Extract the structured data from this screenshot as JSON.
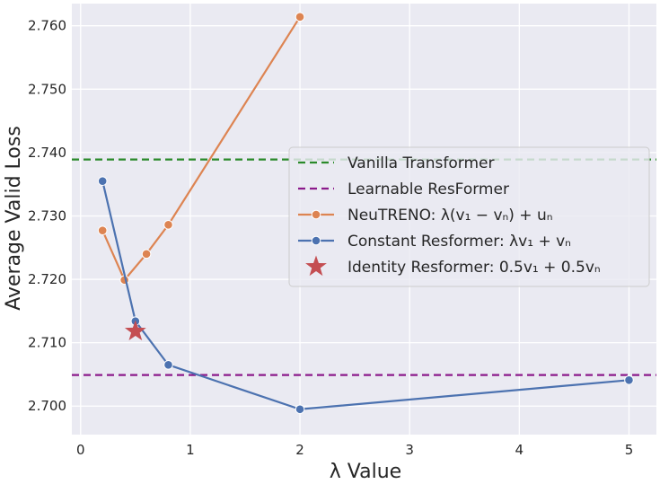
{
  "chart_data": {
    "type": "line",
    "xlabel": "λ Value",
    "ylabel": "Average Valid Loss",
    "xlim": [
      -0.08,
      5.25
    ],
    "ylim": [
      2.6955,
      2.7635
    ],
    "x_ticks": [
      0,
      1,
      2,
      3,
      4,
      5
    ],
    "y_ticks": [
      2.7,
      2.71,
      2.72,
      2.73,
      2.74,
      2.75,
      2.76
    ],
    "x_tick_labels": [
      "0",
      "1",
      "2",
      "3",
      "4",
      "5"
    ],
    "y_tick_labels": [
      "2.700",
      "2.710",
      "2.720",
      "2.730",
      "2.740",
      "2.750",
      "2.760"
    ],
    "grid": true,
    "background": "#eaeaf2",
    "legend_position": "center-right",
    "hlines": [
      {
        "name": "Vanilla Transformer",
        "y": 2.7389,
        "color": "#2a8a2a",
        "style": "dashed"
      },
      {
        "name": "Learnable ResFormer",
        "y": 2.7049,
        "color": "#8b1a8b",
        "style": "dashed"
      }
    ],
    "series": [
      {
        "name": "NeuTRENO",
        "legend_formula": "λ(v₁ − vₙ) + uₙ",
        "color": "#dd8452",
        "x": [
          0.2,
          0.4,
          0.6,
          0.8,
          2.0
        ],
        "y": [
          2.7277,
          2.7199,
          2.724,
          2.7286,
          2.7614
        ]
      },
      {
        "name": "Constant Resformer",
        "legend_formula": "λv₁ + vₙ",
        "color": "#4c72b0",
        "x": [
          0.2,
          0.5,
          0.8,
          2.0,
          5.0
        ],
        "y": [
          2.7355,
          2.7134,
          2.7065,
          2.6995,
          2.7041
        ]
      }
    ],
    "highlight_point": {
      "name": "Identity Resformer",
      "legend_formula": "0.5v₁ + 0.5vₙ",
      "x": 0.5,
      "y": 2.7118,
      "marker": "star",
      "color": "#c44e52"
    }
  }
}
